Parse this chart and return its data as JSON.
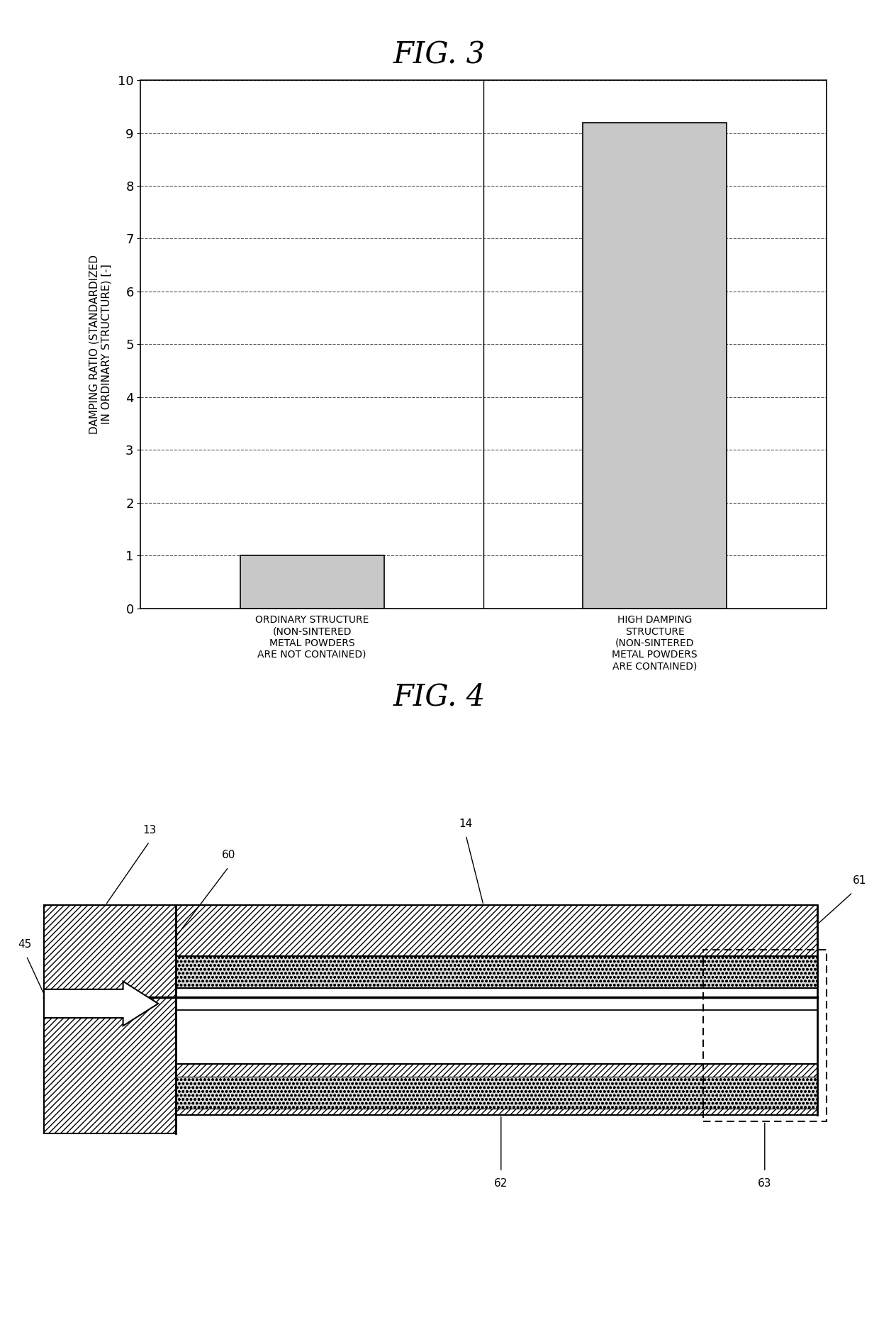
{
  "fig3_title": "FIG. 3",
  "fig4_title": "FIG. 4",
  "bar_categories": [
    "ORDINARY STRUCTURE\n(NON-SINTERED\nMETAL POWDERS\nARE NOT CONTAINED)",
    "HIGH DAMPING\nSTRUCTURE\n(NON-SINTERED\nMETAL POWDERS\nARE CONTAINED)"
  ],
  "bar_values": [
    1.0,
    9.2
  ],
  "bar_color": "#c8c8c8",
  "ylim": [
    0,
    10
  ],
  "yticks": [
    0,
    1,
    2,
    3,
    4,
    5,
    6,
    7,
    8,
    9,
    10
  ],
  "ylabel": "DAMPING RATIO (STANDARDIZED\nIN ORDINARY STRUCTURE) [-]",
  "grid_color": "#555555",
  "bg_color": "#ffffff",
  "fig3_title_fontsize": 30,
  "fig4_title_fontsize": 30,
  "ylabel_fontsize": 11,
  "tick_fontsize": 13,
  "xtick_fontsize": 10
}
